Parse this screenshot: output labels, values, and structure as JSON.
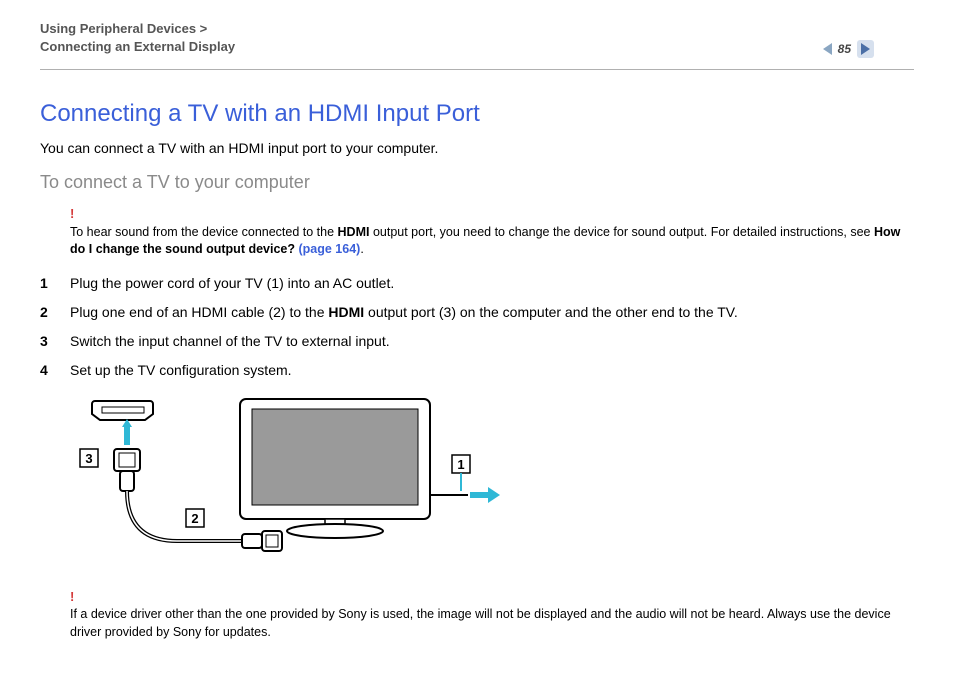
{
  "header": {
    "breadcrumb_line1": "Using Peripheral Devices >",
    "breadcrumb_line2": "Connecting an External Display",
    "page_number": "85"
  },
  "main": {
    "title": "Connecting a TV with an HDMI Input Port",
    "intro": "You can connect a TV with an HDMI input port to your computer.",
    "subhead": "To connect a TV to your computer",
    "note1_pre": "To hear sound from the device connected to the ",
    "note1_b1": "HDMI",
    "note1_mid": " output port, you need to change the device for sound output. For detailed instructions, see ",
    "note1_b2": "How do I change the sound output device? ",
    "note1_link": "(page 164)",
    "note1_post": ".",
    "steps": [
      {
        "n": "1",
        "pre": "Plug the power cord of your TV (1) into an AC outlet.",
        "b": "",
        "post": ""
      },
      {
        "n": "2",
        "pre": "Plug one end of an HDMI cable (2) to the ",
        "b": "HDMI",
        "post": " output port (3) on the computer and the other end to the TV."
      },
      {
        "n": "3",
        "pre": "Switch the input channel of the TV to external input.",
        "b": "",
        "post": ""
      },
      {
        "n": "4",
        "pre": "Set up the TV configuration system.",
        "b": "",
        "post": ""
      }
    ],
    "note2": "If a device driver other than the one provided by Sony is used, the image will not be displayed and the audio will not be heard. Always use the device driver provided by Sony for updates."
  },
  "figure": {
    "labels": {
      "l1": "1",
      "l2": "2",
      "l3": "3"
    },
    "colors": {
      "arrow": "#2fb8d6",
      "label_border": "#000000",
      "label_fill": "#ffffff",
      "stroke": "#000000",
      "screen_fill": "#9a9a9a"
    }
  }
}
